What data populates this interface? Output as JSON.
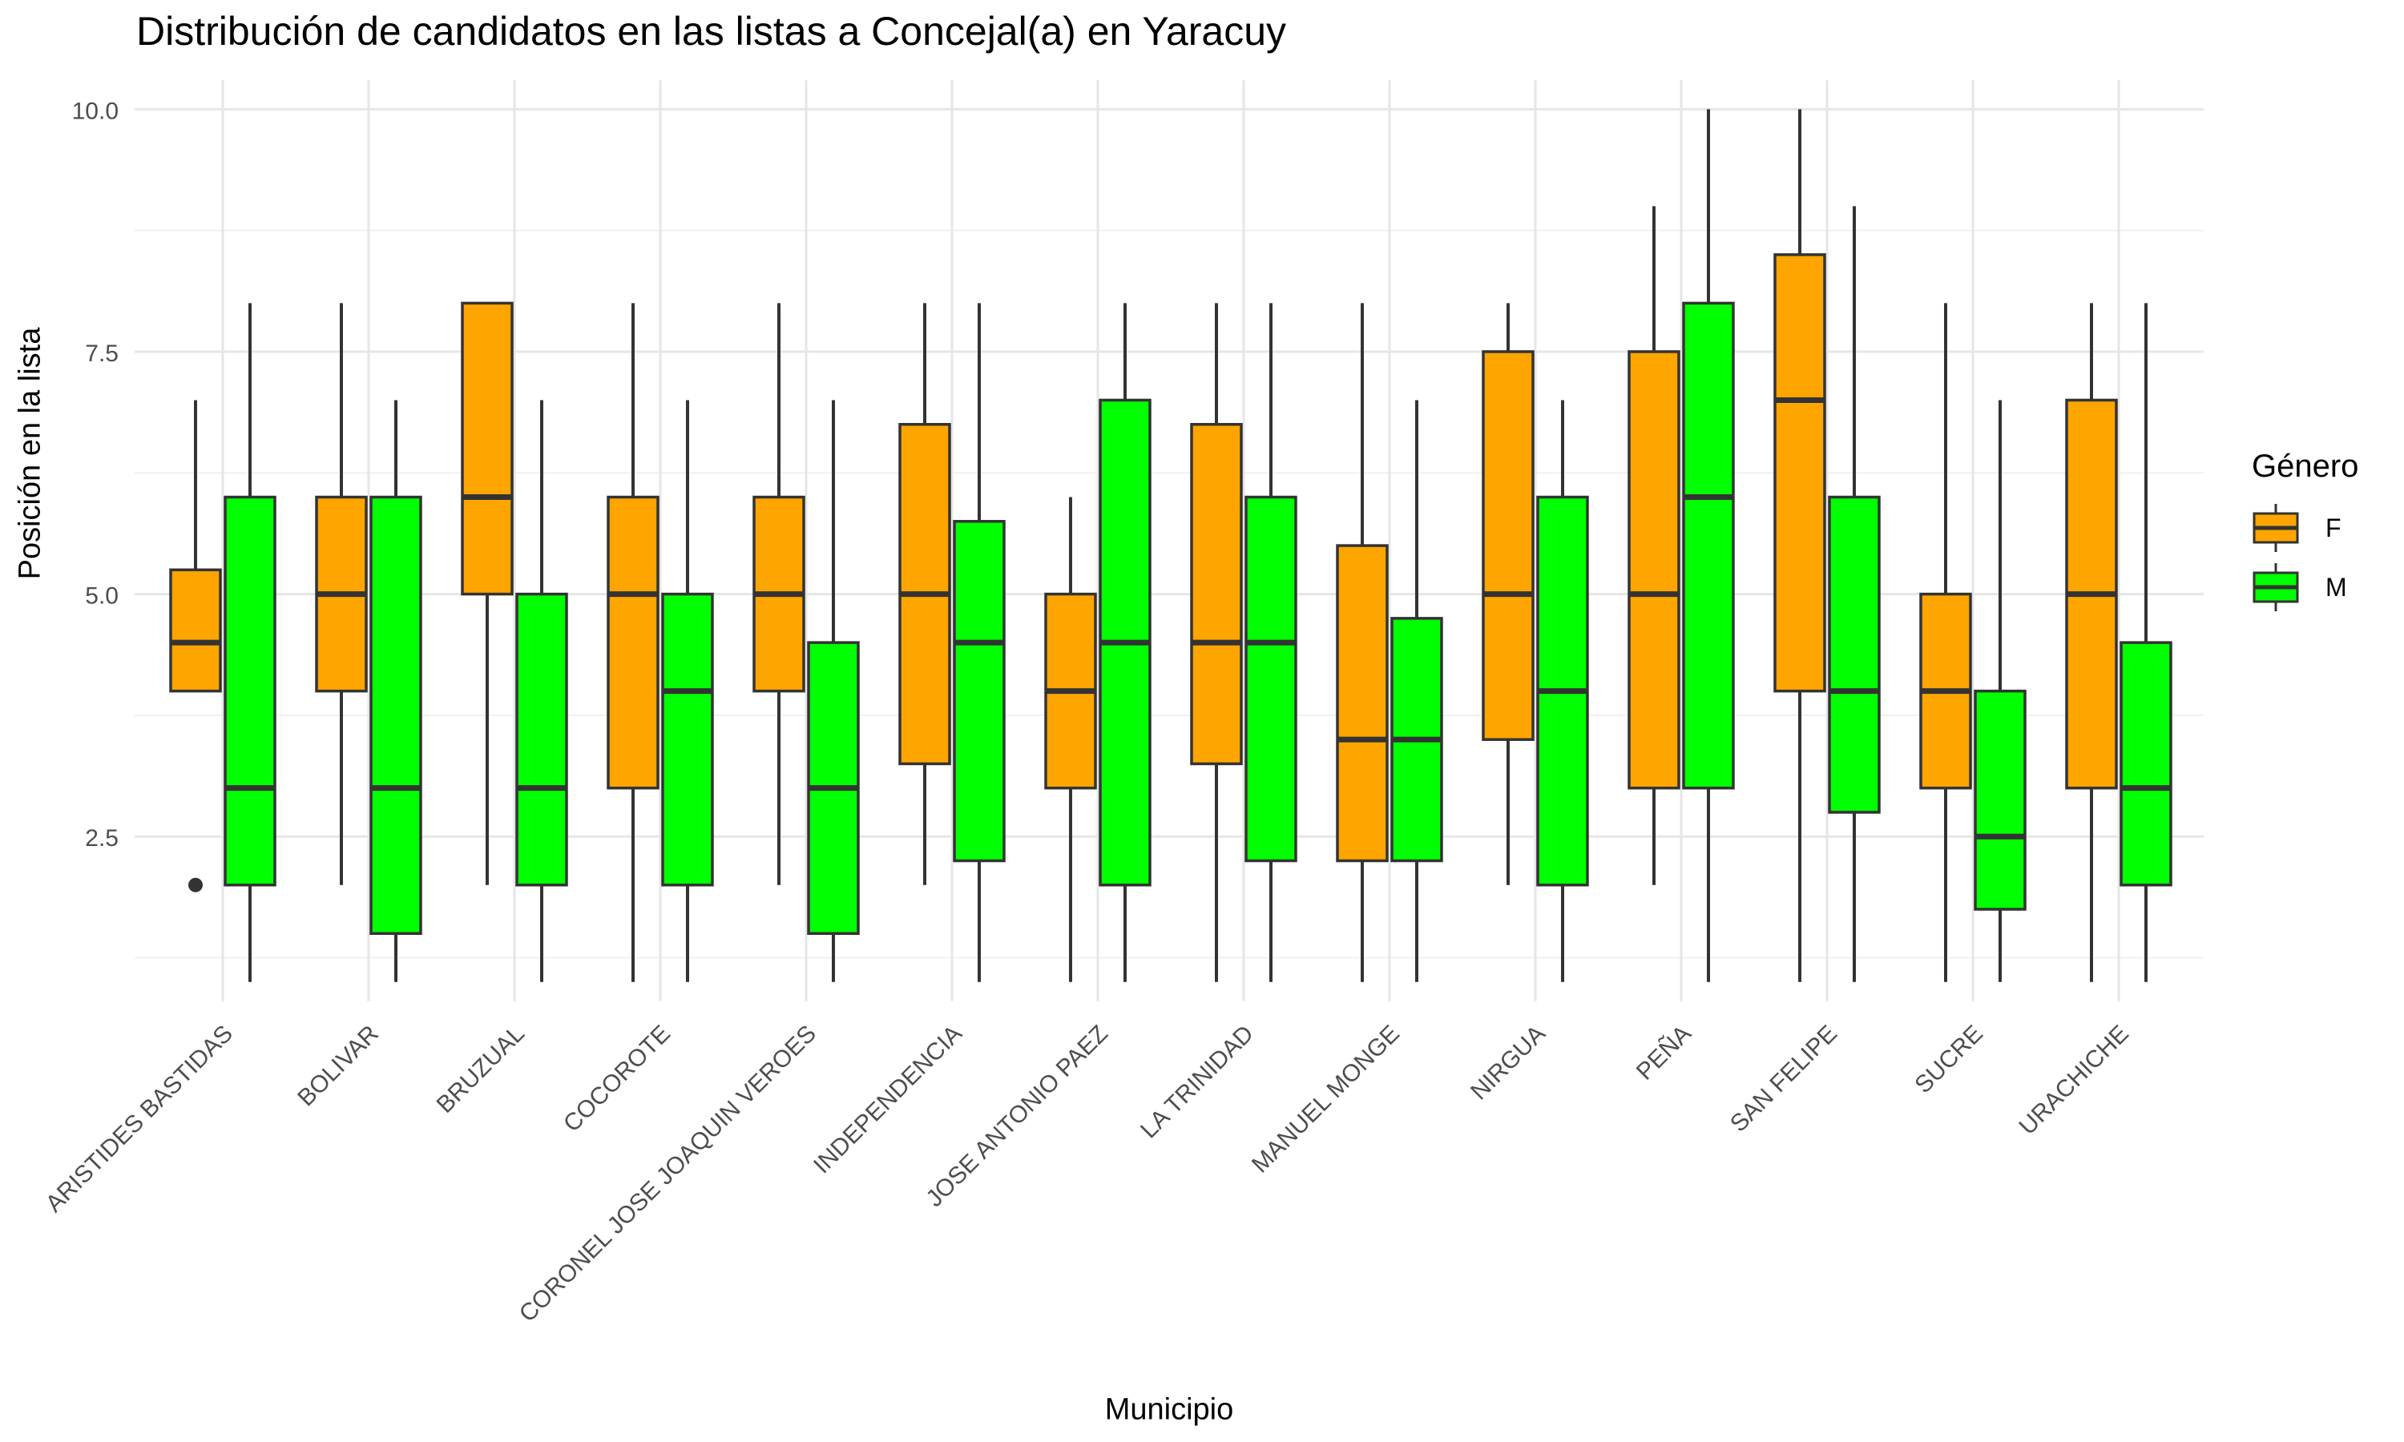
{
  "chart_data": {
    "type": "boxplot",
    "title": "Distribución de candidatos en las listas a Concejal(a) en Yaracuy",
    "xlabel": "Municipio",
    "ylabel": "Posición en la lista",
    "ylim": [
      0.8,
      10.3
    ],
    "y_ticks": [
      "2.5",
      "5.0",
      "7.5",
      "10.0"
    ],
    "grid": true,
    "legend": {
      "title": "Género",
      "position": "right",
      "entries": [
        {
          "name": "F",
          "color": "#FFA500"
        },
        {
          "name": "M",
          "color": "#00FF00"
        }
      ]
    },
    "categories": [
      "ARISTIDES BASTIDAS",
      "BOLIVAR",
      "BRUZUAL",
      "COCOROTE",
      "CORONEL JOSE JOAQUIN VEROES",
      "INDEPENDENCIA",
      "JOSE ANTONIO PAEZ",
      "LA TRINIDAD",
      "MANUEL MONGE",
      "NIRGUA",
      "PEÑA",
      "SAN FELIPE",
      "SUCRE",
      "URACHICHE"
    ],
    "series": [
      {
        "name": "F",
        "color": "#FFA500",
        "boxes": [
          {
            "min": 4,
            "q1": 4,
            "median": 4.5,
            "q3": 5.25,
            "max": 7,
            "outliers": [
              2
            ]
          },
          {
            "min": 2,
            "q1": 4,
            "median": 5,
            "q3": 6,
            "max": 8,
            "outliers": []
          },
          {
            "min": 2,
            "q1": 5,
            "median": 6,
            "q3": 8,
            "max": 8,
            "outliers": []
          },
          {
            "min": 1,
            "q1": 3,
            "median": 5,
            "q3": 6,
            "max": 8,
            "outliers": []
          },
          {
            "min": 2,
            "q1": 4,
            "median": 5,
            "q3": 6,
            "max": 8,
            "outliers": []
          },
          {
            "min": 2,
            "q1": 3.25,
            "median": 5,
            "q3": 6.75,
            "max": 8,
            "outliers": []
          },
          {
            "min": 1,
            "q1": 3,
            "median": 4,
            "q3": 5,
            "max": 6,
            "outliers": []
          },
          {
            "min": 1,
            "q1": 3.25,
            "median": 4.5,
            "q3": 6.75,
            "max": 8,
            "outliers": []
          },
          {
            "min": 1,
            "q1": 2.25,
            "median": 3.5,
            "q3": 5.5,
            "max": 8,
            "outliers": []
          },
          {
            "min": 2,
            "q1": 3.5,
            "median": 5,
            "q3": 7.5,
            "max": 8,
            "outliers": []
          },
          {
            "min": 2,
            "q1": 3,
            "median": 5,
            "q3": 7.5,
            "max": 9,
            "outliers": []
          },
          {
            "min": 1,
            "q1": 4,
            "median": 7,
            "q3": 8.5,
            "max": 10,
            "outliers": []
          },
          {
            "min": 1,
            "q1": 3,
            "median": 4,
            "q3": 5,
            "max": 8,
            "outliers": []
          },
          {
            "min": 1,
            "q1": 3,
            "median": 5,
            "q3": 7,
            "max": 8,
            "outliers": []
          }
        ]
      },
      {
        "name": "M",
        "color": "#00FF00",
        "boxes": [
          {
            "min": 1,
            "q1": 2,
            "median": 3,
            "q3": 6,
            "max": 8,
            "outliers": []
          },
          {
            "min": 1,
            "q1": 1.5,
            "median": 3,
            "q3": 6,
            "max": 7,
            "outliers": []
          },
          {
            "min": 1,
            "q1": 2,
            "median": 3,
            "q3": 5,
            "max": 7,
            "outliers": []
          },
          {
            "min": 1,
            "q1": 2,
            "median": 4,
            "q3": 5,
            "max": 7,
            "outliers": []
          },
          {
            "min": 1,
            "q1": 1.5,
            "median": 3,
            "q3": 4.5,
            "max": 7,
            "outliers": []
          },
          {
            "min": 1,
            "q1": 2.25,
            "median": 4.5,
            "q3": 5.75,
            "max": 8,
            "outliers": []
          },
          {
            "min": 1,
            "q1": 2,
            "median": 4.5,
            "q3": 7,
            "max": 8,
            "outliers": []
          },
          {
            "min": 1,
            "q1": 2.25,
            "median": 4.5,
            "q3": 6,
            "max": 8,
            "outliers": []
          },
          {
            "min": 1,
            "q1": 2.25,
            "median": 3.5,
            "q3": 4.75,
            "max": 7,
            "outliers": []
          },
          {
            "min": 1,
            "q1": 2,
            "median": 4,
            "q3": 6,
            "max": 7,
            "outliers": []
          },
          {
            "min": 1,
            "q1": 3,
            "median": 6,
            "q3": 8,
            "max": 10,
            "outliers": []
          },
          {
            "min": 1,
            "q1": 2.75,
            "median": 4,
            "q3": 6,
            "max": 9,
            "outliers": []
          },
          {
            "min": 1,
            "q1": 1.75,
            "median": 2.5,
            "q3": 4,
            "max": 7,
            "outliers": []
          },
          {
            "min": 1,
            "q1": 2,
            "median": 3,
            "q3": 4.5,
            "max": 8,
            "outliers": []
          }
        ]
      }
    ]
  }
}
